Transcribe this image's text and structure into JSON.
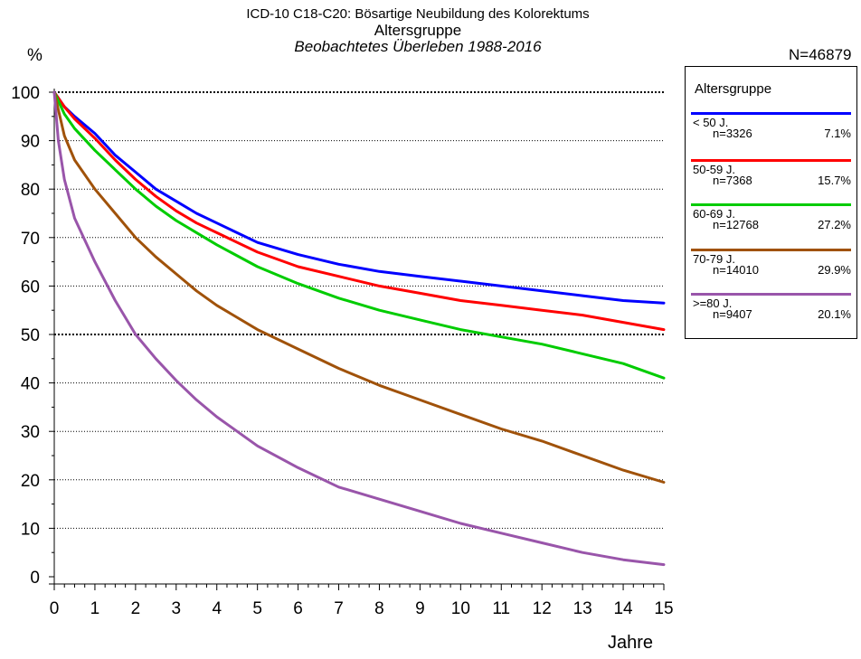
{
  "chart_data": {
    "type": "line",
    "title": "ICD-10 C18-C20: Bösartige Neubildung des Kolorektums",
    "subtitle": "Altersgruppe",
    "subtitle2": "Beobachtetes Überleben 1988-2016",
    "ylabel": "%",
    "xlabel": "Jahre",
    "total_label": "N=46879",
    "xlim": [
      0,
      15
    ],
    "ylim": [
      0,
      100
    ],
    "xticks": [
      0,
      1,
      2,
      3,
      4,
      5,
      6,
      7,
      8,
      9,
      10,
      11,
      12,
      13,
      14,
      15
    ],
    "yticks": [
      0,
      10,
      20,
      30,
      40,
      50,
      60,
      70,
      80,
      90,
      100
    ],
    "grid": true,
    "legend_title": "Altersgruppe",
    "legend_position": "right",
    "series": [
      {
        "name": "< 50 J.",
        "n_label": "n=3326",
        "pct_label": "7.1%",
        "color": "#0000ff",
        "x": [
          0,
          0.25,
          0.5,
          1,
          1.5,
          2,
          2.5,
          3,
          3.5,
          4,
          5,
          6,
          7,
          8,
          9,
          10,
          11,
          12,
          13,
          14,
          15
        ],
        "y": [
          100,
          97,
          95,
          91.5,
          87,
          83.5,
          80,
          77.5,
          75,
          73,
          69,
          66.5,
          64.5,
          63,
          62,
          61,
          60,
          59,
          58,
          57,
          56.5
        ]
      },
      {
        "name": "50-59 J.",
        "n_label": "n=7368",
        "pct_label": "15.7%",
        "color": "#ff0000",
        "x": [
          0,
          0.25,
          0.5,
          1,
          1.5,
          2,
          2.5,
          3,
          3.5,
          4,
          5,
          6,
          7,
          8,
          9,
          10,
          11,
          12,
          13,
          14,
          15
        ],
        "y": [
          100,
          97,
          94.5,
          90.5,
          86,
          82,
          78.5,
          75.5,
          73,
          71,
          67,
          64,
          62,
          60,
          58.5,
          57,
          56,
          55,
          54,
          52.5,
          51
        ]
      },
      {
        "name": "60-69 J.",
        "n_label": "n=12768",
        "pct_label": "27.2%",
        "color": "#00cc00",
        "x": [
          0,
          0.25,
          0.5,
          1,
          1.5,
          2,
          2.5,
          3,
          3.5,
          4,
          5,
          6,
          7,
          8,
          9,
          10,
          11,
          12,
          13,
          14,
          15
        ],
        "y": [
          100,
          95.5,
          92.5,
          88,
          84,
          80,
          76.5,
          73.5,
          71,
          68.5,
          64,
          60.5,
          57.5,
          55,
          53,
          51,
          49.5,
          48,
          46,
          44,
          41
        ]
      },
      {
        "name": "70-79 J.",
        "n_label": "n=14010",
        "pct_label": "29.9%",
        "color": "#a0520a",
        "x": [
          0,
          0.25,
          0.5,
          1,
          1.5,
          2,
          2.5,
          3,
          3.5,
          4,
          5,
          6,
          7,
          8,
          9,
          10,
          11,
          12,
          13,
          14,
          15
        ],
        "y": [
          100,
          91,
          86,
          80,
          75,
          70,
          66,
          62.5,
          59,
          56,
          51,
          47,
          43,
          39.5,
          36.5,
          33.5,
          30.5,
          28,
          25,
          22,
          19.5
        ]
      },
      {
        "name": ">=80 J.",
        "n_label": "n=9407",
        "pct_label": "20.1%",
        "color": "#9955aa",
        "x": [
          0,
          0.1,
          0.25,
          0.5,
          1,
          1.5,
          2,
          2.5,
          3,
          3.5,
          4,
          5,
          6,
          7,
          8,
          9,
          10,
          11,
          12,
          13,
          14,
          15
        ],
        "y": [
          100,
          90,
          82,
          74,
          65,
          57,
          50,
          45,
          40.5,
          36.5,
          33,
          27,
          22.5,
          18.5,
          16,
          13.5,
          11,
          9,
          7,
          5,
          3.5,
          2.5
        ]
      }
    ]
  }
}
